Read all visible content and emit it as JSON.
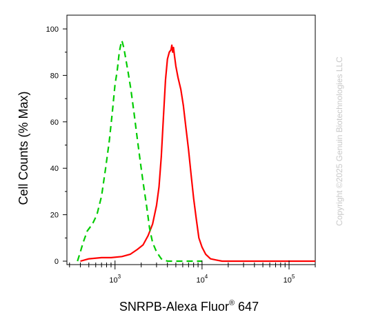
{
  "chart_data": {
    "type": "line",
    "xlabel": "SNRPB-Alexa Fluor",
    "xlabel_superscript": "®",
    "xlabel_suffix": " 647",
    "ylabel": "Cell Counts (% Max)",
    "x_scale": "log",
    "xlim": [
      280,
      200000
    ],
    "ylim": [
      0,
      100
    ],
    "y_ticks": [
      0,
      20,
      40,
      60,
      80,
      100
    ],
    "y_tick_labels": [
      "0",
      "20",
      "40",
      "60",
      "80",
      "100"
    ],
    "x_ticks": [
      1000,
      10000,
      100000
    ],
    "x_tick_labels": [
      {
        "base": "10",
        "exp": "3"
      },
      {
        "base": "10",
        "exp": "4"
      },
      {
        "base": "10",
        "exp": "5"
      }
    ],
    "grid": false,
    "series": [
      {
        "color": "#ff0000",
        "style": "solid",
        "x": [
          400,
          500,
          700,
          900,
          1200,
          1500,
          1800,
          2100,
          2400,
          2700,
          3000,
          3200,
          3400,
          3600,
          3800,
          4000,
          4200,
          4400,
          4500,
          4600,
          4700,
          4800,
          5000,
          5300,
          5700,
          6100,
          6500,
          7000,
          7500,
          8000,
          8600,
          9200,
          10000,
          11000,
          12500,
          14500,
          17000,
          22000,
          30000,
          50000,
          100000,
          200000
        ],
        "y": [
          0,
          1,
          1.5,
          1.5,
          2,
          3,
          5,
          7,
          11,
          16,
          24,
          32,
          45,
          62,
          78,
          87,
          90,
          91,
          93,
          90,
          92,
          89,
          84,
          79,
          74,
          67,
          58,
          48,
          37,
          27,
          18,
          10,
          6,
          3,
          1,
          0.5,
          0,
          0,
          0,
          0,
          0,
          0
        ]
      },
      {
        "color": "#00cc00",
        "style": "dashed",
        "x": [
          370,
          400,
          430,
          480,
          550,
          620,
          700,
          780,
          860,
          930,
          1000,
          1060,
          1120,
          1160,
          1200,
          1260,
          1330,
          1420,
          1520,
          1650,
          1800,
          1950,
          2100,
          2300,
          2500,
          2700,
          3000,
          3400,
          4000,
          5000,
          7000,
          10000
        ],
        "y": [
          0,
          4,
          8,
          13,
          16,
          20,
          28,
          40,
          52,
          64,
          76,
          82,
          90,
          93,
          95,
          92,
          87,
          81,
          74,
          64,
          53,
          43,
          34,
          24,
          14,
          8,
          4,
          1,
          0,
          0,
          0,
          0
        ]
      }
    ]
  },
  "copyright": "Copyright ©2025 Genuin Biotechnologies LLC"
}
